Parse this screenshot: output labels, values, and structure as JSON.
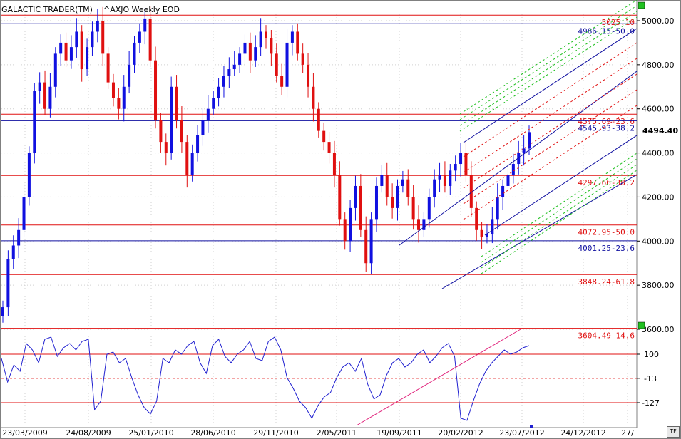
{
  "app": {
    "title": "GALACTIC TRADER(TM)",
    "symbol": "^AXJO Weekly EOD"
  },
  "price_label": "4494.40",
  "tf_button": "TF",
  "colors": {
    "up": "#1010e0",
    "down": "#e01010",
    "grid": "#d0d0d0",
    "fib_red": "#e01010",
    "fib_blue": "#1010a0",
    "channel_green": "#20c020",
    "osc": "#2020d0",
    "trend_pink": "#e0207a",
    "marker_green": "#20c020"
  },
  "chart_data": [
    {
      "type": "candlestick",
      "title": "^AXJO Weekly EOD",
      "ylim": [
        3700,
        5040
      ],
      "y_ticks": [
        3600,
        3800,
        4000,
        4200,
        4400,
        4600,
        4800,
        5000
      ],
      "y_tick_labels": [
        "3600.00",
        "3800.00",
        "4000.00",
        "4200.00",
        "4400.00",
        "4600.00",
        "4800.00",
        "5000.00"
      ],
      "x_labels": [
        "23/03/2009",
        "24/08/2009",
        "25/01/2010",
        "28/06/2010",
        "29/11/2010",
        "2/05/2011",
        "19/09/2011",
        "20/02/2012",
        "23/07/2012",
        "24/12/2012",
        "27/"
      ],
      "last_close": 4494.4,
      "closes": [
        3700,
        3920,
        3980,
        4050,
        4200,
        4400,
        4680,
        4720,
        4600,
        4700,
        4850,
        4900,
        4820,
        4880,
        4950,
        4780,
        4880,
        4950,
        5000,
        4850,
        4720,
        4650,
        4600,
        4700,
        4800,
        4900,
        4950,
        5010,
        4820,
        4550,
        4450,
        4400,
        4700,
        4550,
        4450,
        4300,
        4400,
        4480,
        4550,
        4600,
        4650,
        4700,
        4750,
        4780,
        4800,
        4850,
        4900,
        4820,
        4880,
        4950,
        4920,
        4850,
        4750,
        4700,
        4900,
        4950,
        4850,
        4800,
        4700,
        4600,
        4500,
        4450,
        4400,
        4300,
        4100,
        4000,
        4150,
        4250,
        4050,
        3900,
        4100,
        4250,
        4300,
        4200,
        4150,
        4250,
        4280,
        4200,
        4100,
        4050,
        4100,
        4200,
        4280,
        4300,
        4250,
        4320,
        4350,
        4400,
        4300,
        4150,
        4050,
        4020,
        4030,
        4100,
        4200,
        4250,
        4300,
        4350,
        4400,
        4420,
        4494.4
      ],
      "levels": [
        {
          "value": 5025.1,
          "label": "5025.10",
          "color": "red"
        },
        {
          "value": 4986.15,
          "label": "4986.15-50.0",
          "color": "blue"
        },
        {
          "value": 4575.69,
          "label": "4575.69-23.6",
          "color": "red"
        },
        {
          "value": 4545.93,
          "label": "4545.93-38.2",
          "color": "blue"
        },
        {
          "value": 4297.66,
          "label": "4297.66-38.2",
          "color": "red"
        },
        {
          "value": 4072.95,
          "label": "4072.95-50.0",
          "color": "red"
        },
        {
          "value": 4001.25,
          "label": "4001.25-23.6",
          "color": "blue"
        },
        {
          "value": 3848.24,
          "label": "3848.24-61.8",
          "color": "red"
        },
        {
          "value": 3604.49,
          "label": "3604.49-14.6",
          "color": "red"
        }
      ]
    },
    {
      "type": "line",
      "title": "",
      "ylim": [
        -200,
        200
      ],
      "y_ticks": [
        100,
        -13,
        -127
      ],
      "y_tick_labels": [
        "100",
        "-13",
        "-127"
      ],
      "values": [
        80,
        -30,
        50,
        20,
        150,
        120,
        60,
        170,
        180,
        90,
        130,
        150,
        120,
        160,
        170,
        -160,
        -120,
        100,
        110,
        60,
        80,
        -10,
        -90,
        -150,
        -180,
        -120,
        80,
        60,
        120,
        100,
        140,
        160,
        60,
        10,
        140,
        170,
        90,
        60,
        100,
        120,
        160,
        80,
        70,
        160,
        180,
        120,
        -10,
        -60,
        -120,
        -150,
        -200,
        -140,
        -100,
        -80,
        -10,
        40,
        60,
        20,
        80,
        -40,
        -110,
        -90,
        0,
        60,
        80,
        40,
        60,
        100,
        120,
        60,
        90,
        130,
        150,
        90,
        -200,
        -210,
        -120,
        -40,
        20,
        60,
        90,
        120,
        100,
        110,
        130,
        140
      ]
    }
  ]
}
